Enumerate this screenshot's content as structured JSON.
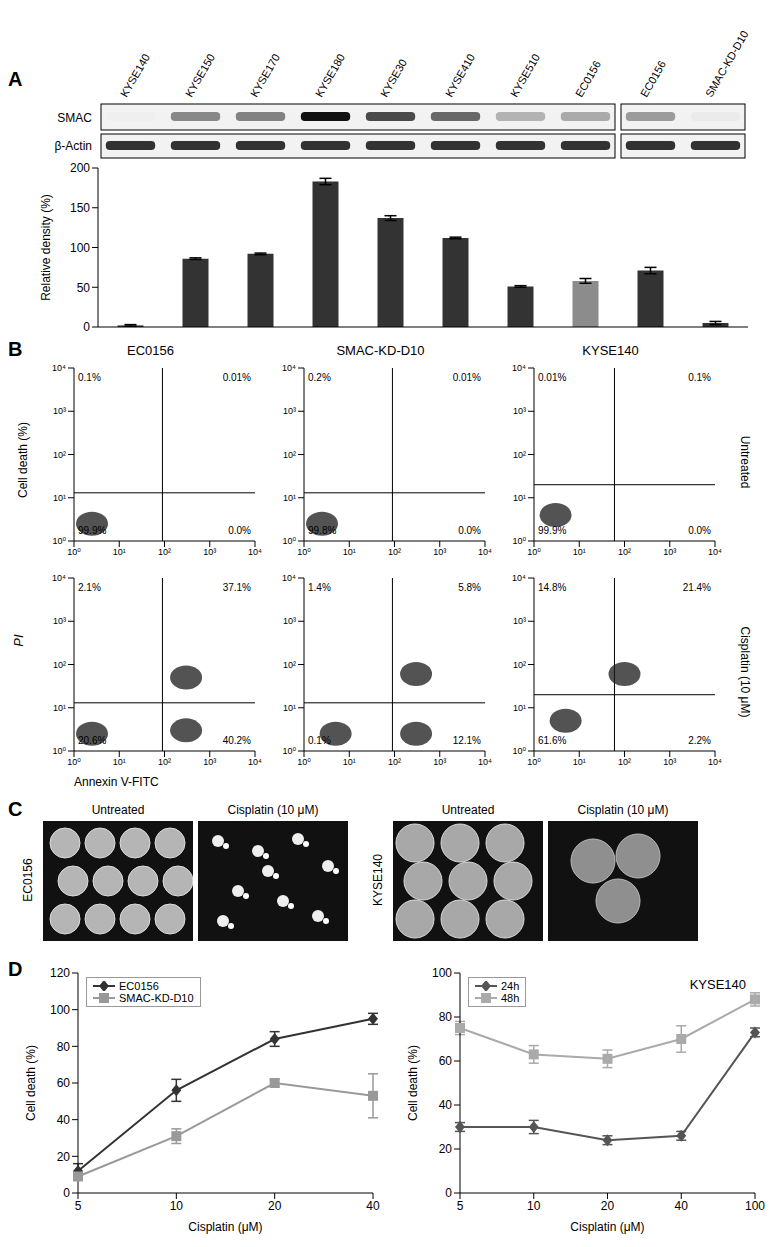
{
  "panel_labels": [
    "A",
    "B",
    "C",
    "D"
  ],
  "blots": [
    {
      "lanes": [
        "KYSE140",
        "KYSE150",
        "KYSE170",
        "KYSE180",
        "KYSE30",
        "KYSE410",
        "KYSE510",
        "EC0156"
      ]
    },
    {
      "lanes": [
        "EC0156",
        "SMAC-KD-D10"
      ]
    }
  ],
  "blot_rows": [
    "SMAC",
    "β-Actin"
  ],
  "chart_data": [
    {
      "type": "bar",
      "categories": [
        "KYSE140",
        "KYSE150",
        "KYSE170",
        "KYSE180",
        "KYSE30",
        "KYSE410",
        "KYSE510",
        "EC0156",
        "EC0156",
        "SMAC-KD-D10"
      ],
      "values": [
        2,
        86,
        92,
        183,
        137,
        112,
        51,
        58,
        71,
        5
      ],
      "errors": [
        1,
        1,
        1,
        4,
        3,
        1,
        1,
        3,
        4,
        2
      ],
      "colors": [
        "#333333",
        "#333333",
        "#333333",
        "#333333",
        "#333333",
        "#333333",
        "#333333",
        "#8c8c8c",
        "#333333",
        "#333333"
      ],
      "ylabel": "Relative density (%)",
      "ylim": [
        0,
        200
      ],
      "yticks": [
        0,
        50,
        100,
        150,
        200
      ],
      "tick_labels": "y",
      "grid": false
    },
    {
      "type": "line",
      "categories": [
        5,
        10,
        20,
        40
      ],
      "xlabel": "Cisplatin (μM)",
      "ylabel": "Cell death (%)",
      "ylim": [
        0,
        120
      ],
      "yticks": [
        0,
        20,
        40,
        60,
        80,
        100,
        120
      ],
      "legend": "upper left",
      "grid": false,
      "series": [
        {
          "name": "EC0156",
          "color": "#333333",
          "marker": "diamond",
          "values": [
            12,
            56,
            84,
            95
          ],
          "errors": [
            4,
            6,
            4,
            3
          ]
        },
        {
          "name": "SMAC-KD-D10",
          "color": "#999999",
          "marker": "square",
          "values": [
            9,
            31,
            60,
            53
          ],
          "errors": [
            2,
            4,
            2,
            12
          ]
        }
      ]
    },
    {
      "type": "line",
      "title": "KYSE140",
      "categories": [
        5,
        10,
        20,
        40,
        100
      ],
      "xlabel": "Cisplatin (μM)",
      "ylabel": "Cell death (%)",
      "ylim": [
        0,
        100
      ],
      "yticks": [
        0,
        20,
        40,
        60,
        80,
        100
      ],
      "legend": "upper left",
      "grid": false,
      "series": [
        {
          "name": "24h",
          "color": "#555555",
          "marker": "diamond",
          "values": [
            30,
            30,
            24,
            26,
            73
          ],
          "errors": [
            2,
            3,
            2,
            2,
            2
          ]
        },
        {
          "name": "48h",
          "color": "#aaaaaa",
          "marker": "square",
          "values": [
            75,
            63,
            61,
            70,
            88
          ],
          "errors": [
            3,
            4,
            4,
            6,
            3
          ]
        }
      ]
    }
  ],
  "flow": {
    "type": "scatter",
    "columns": [
      "EC0156",
      "SMAC-KD-D10",
      "KYSE140"
    ],
    "rows": [
      "Untreated",
      "Cisplatin (10 μM)"
    ],
    "group_label": "Cell death (%)",
    "xlabel": "Annexin V-FITC",
    "ylabel": "PI",
    "log": true,
    "xlim": [
      1,
      10000
    ],
    "ylim": [
      1,
      10000
    ],
    "xticks": [
      {
        "value": 1,
        "label": "10⁰"
      },
      {
        "value": 10,
        "label": "10¹"
      },
      {
        "value": 100,
        "label": "10²"
      },
      {
        "value": 1000,
        "label": "10³"
      },
      {
        "value": 10000,
        "label": "10⁴"
      }
    ],
    "yticks": [
      {
        "value": 1,
        "label": "10⁰"
      },
      {
        "value": 10,
        "label": "10¹"
      },
      {
        "value": 100,
        "label": "10²"
      },
      {
        "value": 1000,
        "label": "10³"
      },
      {
        "value": 10000,
        "label": "10⁴"
      }
    ],
    "plots": [
      [
        {
          "gate": {
            "x": 90,
            "y": 13
          },
          "quadrants": {
            "UL": {
              "value": 0.1,
              "label": "0.1%"
            },
            "UR": {
              "value": 0.01,
              "label": "0.01%"
            },
            "LL": {
              "value": 99.9,
              "label": "99.9%"
            },
            "LR": {
              "value": 0,
              "label": "0.0%"
            }
          },
          "clusters": [
            {
              "x": 2.5,
              "y": 2.5
            }
          ]
        },
        {
          "gate": {
            "x": 90,
            "y": 13
          },
          "quadrants": {
            "UL": {
              "value": 0.2,
              "label": "0.2%"
            },
            "UR": {
              "value": 0.01,
              "label": "0.01%"
            },
            "LL": {
              "value": 99.8,
              "label": "99.8%"
            },
            "LR": {
              "value": 0,
              "label": "0.0%"
            }
          },
          "clusters": [
            {
              "x": 2.5,
              "y": 2.5
            }
          ]
        },
        {
          "gate": {
            "x": 60,
            "y": 20
          },
          "quadrants": {
            "UL": {
              "value": 0.01,
              "label": "0.01%"
            },
            "UR": {
              "value": 0.1,
              "label": "0.1%"
            },
            "LL": {
              "value": 99.9,
              "label": "99.9%"
            },
            "LR": {
              "value": 0,
              "label": "0.0%"
            }
          },
          "clusters": [
            {
              "x": 3,
              "y": 4
            }
          ]
        }
      ],
      [
        {
          "gate": {
            "x": 90,
            "y": 13
          },
          "quadrants": {
            "UL": {
              "value": 2.1,
              "label": "2.1%"
            },
            "UR": {
              "value": 37.1,
              "label": "37.1%"
            },
            "LL": {
              "value": 20.6,
              "label": "20.6%"
            },
            "LR": {
              "value": 40.2,
              "label": "40.2%"
            }
          },
          "clusters": [
            {
              "x": 2.5,
              "y": 2.5
            },
            {
              "x": 300,
              "y": 50
            },
            {
              "x": 300,
              "y": 3
            }
          ]
        },
        {
          "gate": {
            "x": 90,
            "y": 13
          },
          "quadrants": {
            "UL": {
              "value": 1.4,
              "label": "1.4%"
            },
            "UR": {
              "value": 5.8,
              "label": "5.8%"
            },
            "LL": {
              "value": 0.1,
              "label": "0.1%"
            },
            "LR": {
              "value": 12.1,
              "label": "12.1%"
            }
          },
          "clusters": [
            {
              "x": 5,
              "y": 2.5
            },
            {
              "x": 300,
              "y": 60
            },
            {
              "x": 300,
              "y": 2.5
            }
          ]
        },
        {
          "gate": {
            "x": 60,
            "y": 20
          },
          "quadrants": {
            "UL": {
              "value": 14.8,
              "label": "14.8%"
            },
            "UR": {
              "value": 21.4,
              "label": "21.4%"
            },
            "LL": {
              "value": 61.6,
              "label": "61.6%"
            },
            "LR": {
              "value": 2.2,
              "label": "2.2%"
            }
          },
          "clusters": [
            {
              "x": 5,
              "y": 5
            },
            {
              "x": 100,
              "y": 60
            }
          ]
        }
      ]
    ]
  },
  "microscopy": {
    "columns": [
      "Untreated",
      "Cisplatin (10 μM)"
    ],
    "rows": [
      "EC0156",
      "KYSE140"
    ]
  }
}
